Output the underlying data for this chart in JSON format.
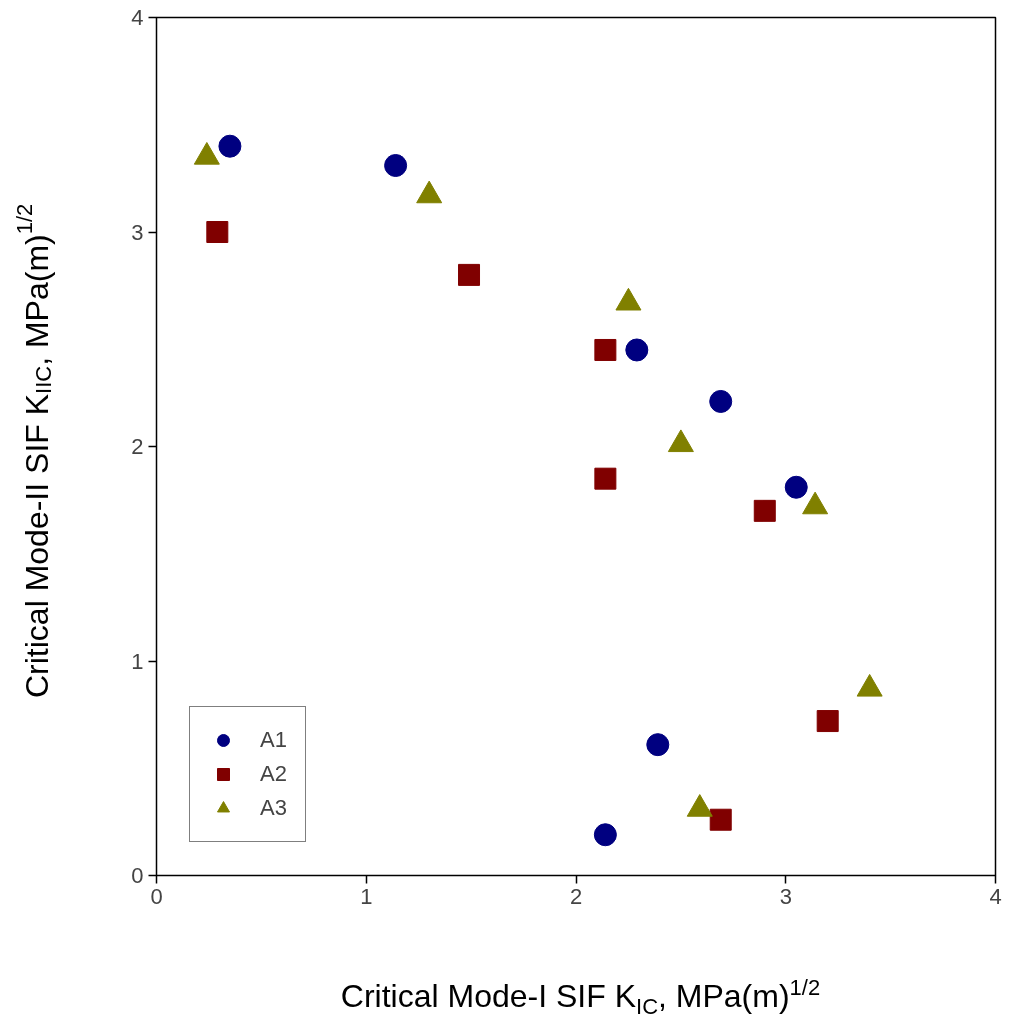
{
  "chart_data": {
    "type": "scatter",
    "xlabel": "Critical Mode-I SIF K$_{IC}$, MPa(m)$^{1/2}$",
    "ylabel": "Critical Mode-II SIF K$_{IIC}$, MPa(m)$^{1/2}$",
    "xlim": [
      0,
      4
    ],
    "ylim": [
      0,
      4
    ],
    "xticks": [
      0,
      1,
      2,
      3,
      4
    ],
    "yticks": [
      0,
      1,
      2,
      3,
      4
    ],
    "grid": false,
    "legend": "bottom left",
    "series": [
      {
        "name": "A1",
        "color": "#000080",
        "marker": "circle",
        "x": [
          0.35,
          1.14,
          2.29,
          2.69,
          3.05,
          2.39,
          2.14
        ],
        "values": [
          3.4,
          3.31,
          2.45,
          2.21,
          1.81,
          0.61,
          0.19
        ]
      },
      {
        "name": "A2",
        "color": "#800000",
        "marker": "square",
        "x": [
          0.29,
          1.49,
          2.14,
          2.14,
          2.9,
          3.2,
          2.69
        ],
        "values": [
          3.0,
          2.8,
          2.45,
          1.85,
          1.7,
          0.72,
          0.26
        ]
      },
      {
        "name": "A3",
        "color": "#808000",
        "marker": "triangle",
        "x": [
          0.24,
          1.3,
          2.25,
          2.5,
          3.14,
          3.4,
          2.59
        ],
        "values": [
          3.35,
          3.17,
          2.67,
          2.01,
          1.72,
          0.87,
          0.31
        ]
      }
    ]
  }
}
